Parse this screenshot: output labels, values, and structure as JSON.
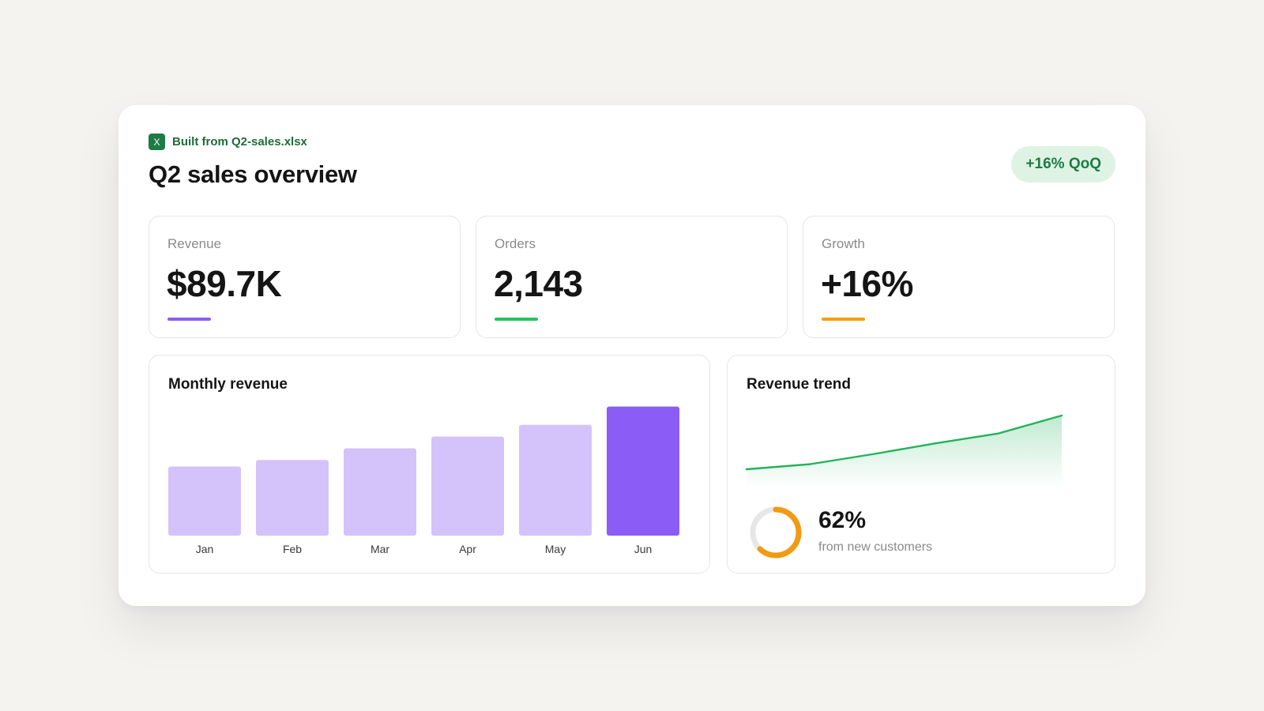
{
  "header": {
    "source_icon_glyph": "X",
    "source_label": "Built from Q2-sales.xlsx",
    "title": "Q2 sales overview",
    "badge": "+16% QoQ"
  },
  "kpis": [
    {
      "label": "Revenue",
      "value": "$89.7K",
      "accent_color": "#8b5cf6"
    },
    {
      "label": "Orders",
      "value": "2,143",
      "accent_color": "#22c55e"
    },
    {
      "label": "Growth",
      "value": "+16%",
      "accent_color": "#f59e0b"
    }
  ],
  "monthly_revenue": {
    "title": "Monthly revenue"
  },
  "revenue_trend": {
    "title": "Revenue trend",
    "donut_value": "62%",
    "donut_caption": "from new customers"
  },
  "colors": {
    "bar": "#d4c3fa",
    "bar_highlight": "#8b5cf6",
    "trend_line": "#22b35a",
    "donut": "#f29a12",
    "donut_track": "#e7e7e7",
    "excel_green": "#1e7b45"
  },
  "chart_data": [
    {
      "type": "bar",
      "title": "Monthly revenue",
      "categories": [
        "Jan",
        "Feb",
        "Mar",
        "Apr",
        "May",
        "Jun"
      ],
      "values": [
        53,
        58,
        67,
        76,
        85,
        99
      ],
      "highlight_index": 5,
      "ylim": [
        0,
        100
      ]
    },
    {
      "type": "area",
      "title": "Revenue trend",
      "x": [
        0,
        1,
        2,
        3,
        4,
        5
      ],
      "values": [
        0,
        12,
        36,
        62,
        85,
        128
      ],
      "ylim": [
        0,
        128
      ]
    },
    {
      "type": "pie",
      "title": "",
      "values": [
        62,
        38
      ],
      "labels": [
        "from new customers",
        ""
      ]
    }
  ]
}
